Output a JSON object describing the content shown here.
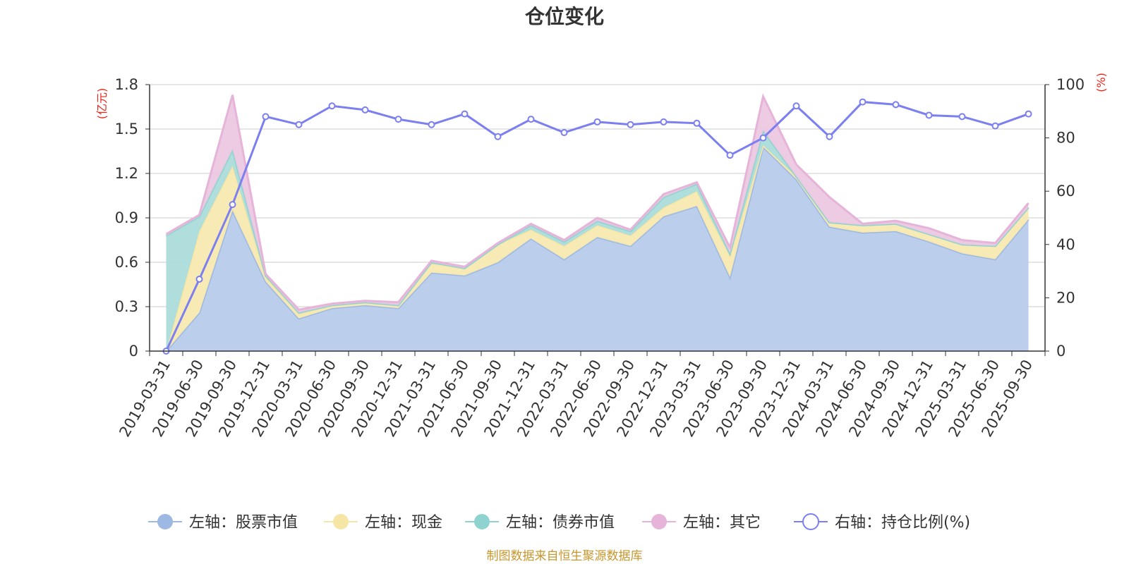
{
  "chart_data": {
    "type": "area",
    "title": "仓位变化",
    "left_unit": "(亿元)",
    "right_unit": "(%)",
    "source": "制图数据来自恒生聚源数据库",
    "left_ylim": [
      0,
      1.8
    ],
    "left_ticks": [
      "0",
      "0.3",
      "0.6",
      "0.9",
      "1.2",
      "1.5",
      "1.8"
    ],
    "left_tick_values": [
      0,
      0.3,
      0.6,
      0.9,
      1.2,
      1.5,
      1.8
    ],
    "right_ylim": [
      0,
      100
    ],
    "right_ticks": [
      "0",
      "20",
      "40",
      "60",
      "80",
      "100"
    ],
    "right_tick_values": [
      0,
      20,
      40,
      60,
      80,
      100
    ],
    "categories": [
      "2019-03-31",
      "2019-06-30",
      "2019-09-30",
      "2019-12-31",
      "2020-03-31",
      "2020-06-30",
      "2020-09-30",
      "2020-12-31",
      "2021-03-31",
      "2021-06-30",
      "2021-09-30",
      "2021-12-31",
      "2022-03-31",
      "2022-06-30",
      "2022-09-30",
      "2022-12-31",
      "2023-03-31",
      "2023-06-30",
      "2023-09-30",
      "2023-12-31",
      "2024-03-31",
      "2024-06-30",
      "2024-09-30",
      "2024-12-31",
      "2025-03-31",
      "2025-06-30",
      "2025-09-30"
    ],
    "series": [
      {
        "name": "左轴：股票市值",
        "axis": "left",
        "kind": "area",
        "color": "#9db8e2",
        "fill": "#b7cbea",
        "values": [
          0.0,
          0.26,
          0.95,
          0.47,
          0.22,
          0.29,
          0.31,
          0.29,
          0.53,
          0.51,
          0.6,
          0.76,
          0.62,
          0.77,
          0.71,
          0.91,
          0.98,
          0.5,
          1.38,
          1.16,
          0.84,
          0.8,
          0.81,
          0.74,
          0.66,
          0.62,
          0.89
        ]
      },
      {
        "name": "左轴：现金",
        "axis": "left",
        "kind": "area",
        "color": "#f6e6a6",
        "fill": "#f8e9b0",
        "values": [
          0.0,
          0.55,
          0.3,
          0.03,
          0.03,
          0.02,
          0.02,
          0.02,
          0.06,
          0.05,
          0.12,
          0.06,
          0.09,
          0.08,
          0.07,
          0.06,
          0.1,
          0.14,
          0.01,
          0.02,
          0.03,
          0.05,
          0.05,
          0.05,
          0.06,
          0.09,
          0.08
        ]
      },
      {
        "name": "左轴：债券市值",
        "axis": "left",
        "kind": "area",
        "color": "#8fd3d0",
        "fill": "#acdcda",
        "values": [
          0.78,
          0.1,
          0.11,
          0.01,
          0.01,
          0.0,
          0.0,
          0.0,
          0.01,
          0.0,
          0.0,
          0.03,
          0.03,
          0.03,
          0.03,
          0.07,
          0.05,
          0.02,
          0.1,
          0.0,
          0.0,
          0.0,
          0.0,
          0.0,
          0.0,
          0.0,
          0.0
        ]
      },
      {
        "name": "左轴：其它",
        "axis": "left",
        "kind": "area",
        "color": "#e6b3d9",
        "fill": "#ebc8e2",
        "values": [
          0.01,
          0.01,
          0.37,
          0.01,
          0.02,
          0.01,
          0.01,
          0.02,
          0.01,
          0.01,
          0.01,
          0.01,
          0.01,
          0.02,
          0.01,
          0.02,
          0.01,
          0.04,
          0.23,
          0.08,
          0.17,
          0.01,
          0.02,
          0.04,
          0.03,
          0.02,
          0.03
        ]
      },
      {
        "name": "右轴：持仓比例(%)",
        "axis": "right",
        "kind": "line",
        "color": "#7b7fef",
        "values": [
          0,
          27,
          55,
          88,
          85,
          92,
          90.5,
          87,
          85,
          89,
          80.5,
          87,
          82,
          86,
          85,
          86,
          85.5,
          73.5,
          80,
          92,
          80.5,
          93.5,
          92.5,
          88.5,
          88,
          84.5,
          89
        ]
      }
    ]
  }
}
